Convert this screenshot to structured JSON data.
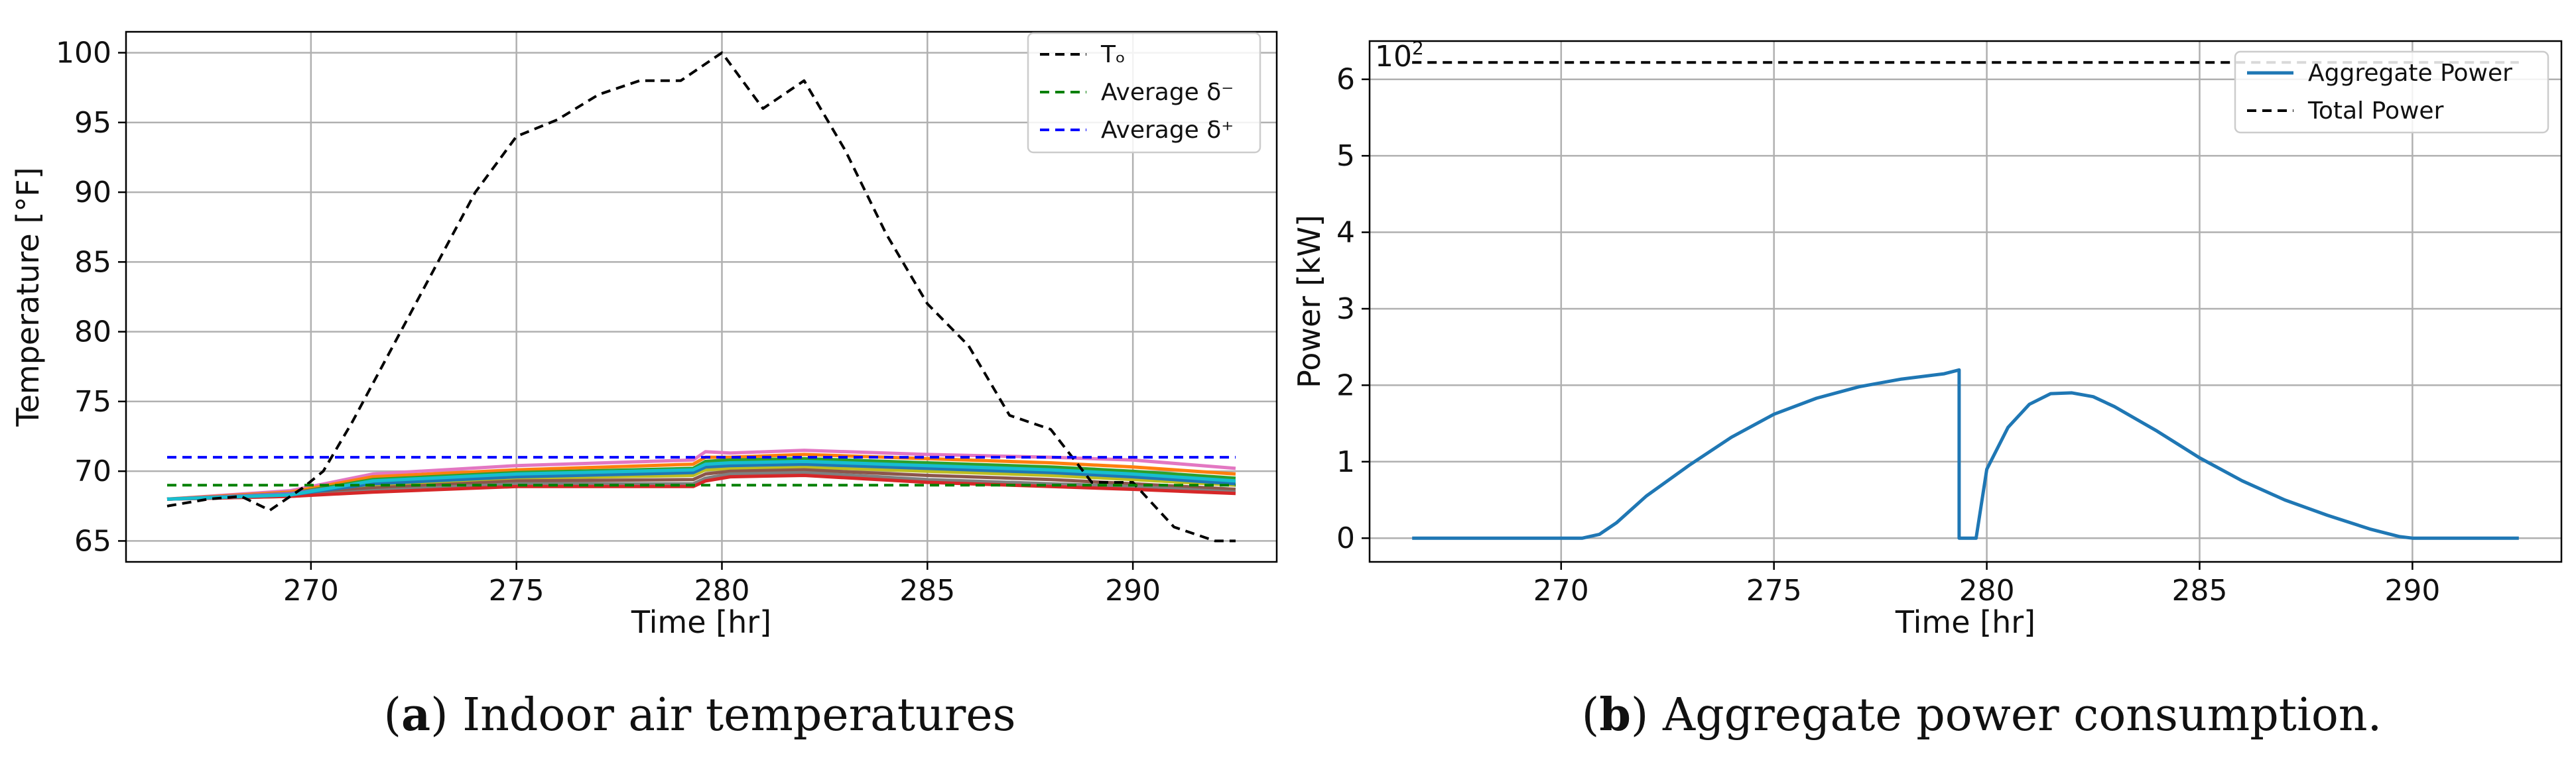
{
  "chart_data": [
    {
      "type": "line",
      "panel_label": "a",
      "caption": "Indoor air temperatures",
      "xlabel": "Time [hr]",
      "ylabel": "Temperature [°F]",
      "xlim": [
        265.5,
        293.5
      ],
      "ylim": [
        63.5,
        101.5
      ],
      "xticks": [
        270,
        275,
        280,
        285,
        290
      ],
      "yticks": [
        65,
        70,
        75,
        80,
        85,
        90,
        95,
        100
      ],
      "grid": true,
      "legend_position": "top-right",
      "series": [
        {
          "name": "Tₒ",
          "style": "dashed",
          "color": "#000000",
          "x": [
            266.5,
            267.5,
            268.3,
            269,
            269.8,
            270.3,
            271,
            272,
            273,
            274,
            275,
            276,
            277,
            278,
            279,
            280,
            281,
            282,
            283,
            284,
            285,
            286,
            287,
            288,
            289,
            290,
            291,
            292,
            292.5
          ],
          "y": [
            67.5,
            68,
            68.2,
            67.2,
            68.8,
            70,
            73.5,
            79,
            84.5,
            90,
            94,
            95.2,
            97,
            98,
            98,
            100,
            96,
            98,
            93,
            87,
            82,
            79,
            74,
            73,
            69.2,
            69.2,
            66,
            65,
            65
          ]
        },
        {
          "name": "Average δ⁻",
          "style": "dashed",
          "color": "#008000",
          "x": [
            266.5,
            292.5
          ],
          "y": [
            69,
            69
          ]
        },
        {
          "name": "Average δ⁺",
          "style": "dashed",
          "color": "#0000ff",
          "x": [
            266.5,
            292.5
          ],
          "y": [
            71,
            71
          ]
        },
        {
          "name": "",
          "style": "solid",
          "color": "#e377c2",
          "x": [
            266.5,
            269.5,
            271.5,
            275,
            279.3,
            279.6,
            280.2,
            282,
            285,
            288,
            290,
            292.5
          ],
          "y": [
            68,
            68.6,
            69.8,
            70.4,
            70.8,
            71.4,
            71.3,
            71.5,
            71.2,
            71,
            70.8,
            70.2
          ]
        },
        {
          "name": "",
          "style": "solid",
          "color": "#ff7f0e",
          "x": [
            266.5,
            269.5,
            271.5,
            275,
            279.3,
            279.6,
            280.2,
            282,
            285,
            288,
            290,
            292.5
          ],
          "y": [
            68,
            68.5,
            69.6,
            70.1,
            70.5,
            71,
            71,
            71.2,
            70.9,
            70.6,
            70.3,
            69.8
          ]
        },
        {
          "name": "",
          "style": "solid",
          "color": "#2ca02c",
          "x": [
            266.5,
            269.5,
            271.5,
            275,
            279.3,
            279.6,
            280.2,
            282,
            285,
            288,
            290,
            292.5
          ],
          "y": [
            68,
            68.4,
            69.4,
            69.9,
            70.2,
            70.7,
            70.8,
            70.9,
            70.6,
            70.3,
            70,
            69.5
          ]
        },
        {
          "name": "",
          "style": "solid",
          "color": "#9467bd",
          "x": [
            266.5,
            269.5,
            271.5,
            275,
            279.3,
            279.6,
            280.2,
            282,
            285,
            288,
            290,
            292.5
          ],
          "y": [
            68,
            68.4,
            69.2,
            69.7,
            70,
            70.4,
            70.5,
            70.6,
            70.3,
            70,
            69.7,
            69.2
          ]
        },
        {
          "name": "",
          "style": "solid",
          "color": "#bcbd22",
          "x": [
            266.5,
            269.5,
            271.5,
            275,
            279.3,
            279.6,
            280.2,
            282,
            285,
            288,
            290,
            292.5
          ],
          "y": [
            68,
            68.3,
            69,
            69.5,
            69.7,
            70.1,
            70.2,
            70.3,
            70,
            69.7,
            69.4,
            69
          ]
        },
        {
          "name": "",
          "style": "solid",
          "color": "#8c564b",
          "x": [
            266.5,
            269.5,
            271.5,
            275,
            279.3,
            279.6,
            280.2,
            282,
            285,
            288,
            290,
            292.5
          ],
          "y": [
            68,
            68.3,
            68.8,
            69.3,
            69.4,
            69.8,
            70,
            70.1,
            69.7,
            69.4,
            69.1,
            68.7
          ]
        },
        {
          "name": "",
          "style": "solid",
          "color": "#7f7f7f",
          "x": [
            266.5,
            269.5,
            271.5,
            275,
            279.3,
            279.6,
            280.2,
            282,
            285,
            288,
            290,
            292.5
          ],
          "y": [
            68,
            68.2,
            68.6,
            69.1,
            69.1,
            69.5,
            69.8,
            69.9,
            69.4,
            69.1,
            68.9,
            68.5
          ]
        },
        {
          "name": "",
          "style": "solid",
          "color": "#d62728",
          "x": [
            266.5,
            269.5,
            271.5,
            275,
            279.3,
            279.6,
            280.2,
            282,
            285,
            288,
            290,
            292.5
          ],
          "y": [
            68,
            68.2,
            68.5,
            68.9,
            68.9,
            69.3,
            69.6,
            69.7,
            69.2,
            68.9,
            68.7,
            68.4
          ]
        },
        {
          "name": "",
          "style": "solid",
          "color": "#1f77b4",
          "x": [
            266.5,
            269.5,
            271.5,
            275,
            279.3,
            279.6,
            280.2,
            282,
            285,
            288,
            290,
            292.5
          ],
          "y": [
            68,
            68.3,
            69.1,
            69.6,
            69.9,
            70.3,
            70.4,
            70.5,
            70.2,
            69.9,
            69.6,
            69.1
          ]
        },
        {
          "name": "",
          "style": "solid",
          "color": "#17becf",
          "x": [
            266.5,
            269.5,
            271.5,
            275,
            279.3,
            279.6,
            280.2,
            282,
            285,
            288,
            290,
            292.5
          ],
          "y": [
            68,
            68.3,
            69.3,
            69.8,
            70.1,
            70.5,
            70.6,
            70.7,
            70.4,
            70.1,
            69.8,
            69.3
          ]
        }
      ]
    },
    {
      "type": "line",
      "panel_label": "b",
      "caption": "Aggregate power consumption.",
      "xlabel": "Time [hr]",
      "ylabel": "Power [kW]",
      "y_scale_base": "10",
      "y_scale_exp": "2",
      "xlim": [
        265.5,
        293.5
      ],
      "ylim": [
        -0.31,
        6.5
      ],
      "xticks": [
        270,
        275,
        280,
        285,
        290
      ],
      "yticks": [
        0,
        1,
        2,
        3,
        4,
        5,
        6
      ],
      "grid": true,
      "legend_position": "top-right",
      "series": [
        {
          "name": "Aggregate Power",
          "style": "solid",
          "color": "#1f77b4",
          "x": [
            266.5,
            270.5,
            270.9,
            271.3,
            272,
            273,
            274,
            275,
            276,
            277,
            278,
            279,
            279.35,
            279.35,
            279.75,
            280,
            280.5,
            281,
            281.5,
            282,
            282.5,
            283,
            284,
            285,
            286,
            287,
            288,
            289,
            289.7,
            290,
            292.5
          ],
          "y": [
            0,
            0,
            0.05,
            0.2,
            0.55,
            0.95,
            1.32,
            1.62,
            1.83,
            1.98,
            2.08,
            2.15,
            2.2,
            0,
            0,
            0.9,
            1.45,
            1.75,
            1.89,
            1.9,
            1.85,
            1.72,
            1.4,
            1.05,
            0.75,
            0.5,
            0.3,
            0.12,
            0.02,
            0,
            0
          ]
        },
        {
          "name": "Total Power",
          "style": "dashed",
          "color": "#000000",
          "x": [
            266.5,
            292.5
          ],
          "y": [
            6.22,
            6.22
          ]
        }
      ]
    }
  ]
}
